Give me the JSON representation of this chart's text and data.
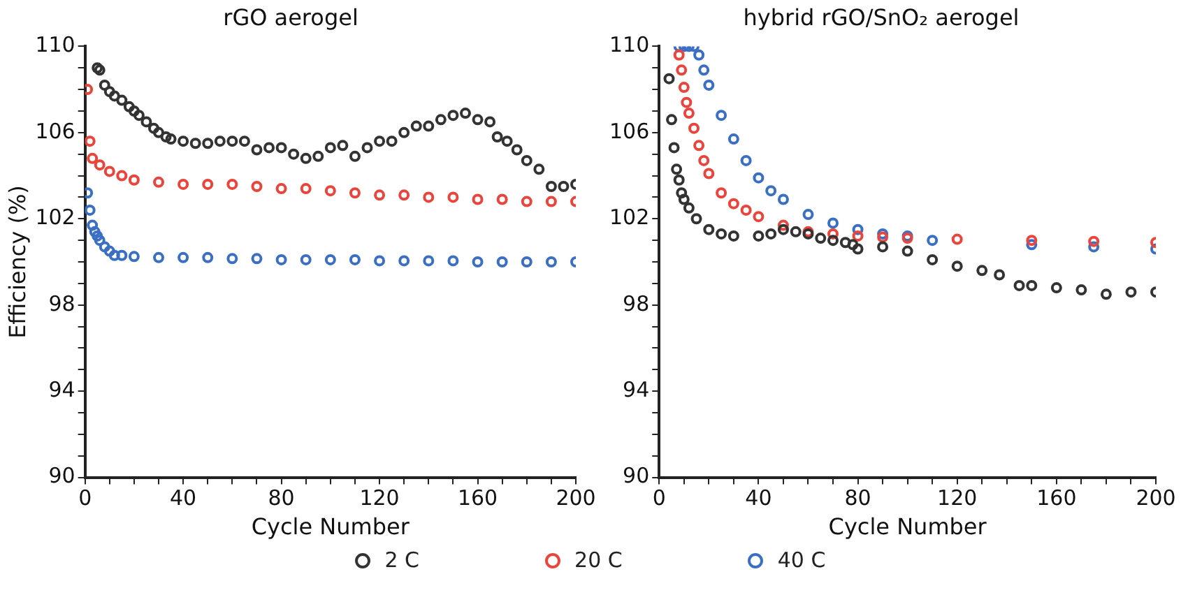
{
  "chart_data": [
    {
      "type": "scatter",
      "title": "rGO aerogel",
      "xlabel": "Cycle Number",
      "ylabel": "Efficiency (%)",
      "xlim": [
        0,
        200
      ],
      "ylim": [
        90,
        110
      ],
      "xticks": [
        0,
        {
          "value": 10,
          "label": null
        },
        40,
        {
          "value": 20,
          "label": null
        },
        {
          "value": 30,
          "label": null
        },
        {
          "value": 50,
          "label": null
        },
        {
          "value": 60,
          "label": null
        },
        {
          "value": 70,
          "label": null
        },
        80,
        {
          "value": 90,
          "label": null
        },
        {
          "value": 100,
          "label": null
        },
        {
          "value": 110,
          "label": null
        },
        120,
        {
          "value": 130,
          "label": null
        },
        {
          "value": 140,
          "label": null
        },
        {
          "value": 150,
          "label": null
        },
        160,
        {
          "value": 170,
          "label": null
        },
        {
          "value": 180,
          "label": null
        },
        {
          "value": 190,
          "label": null
        },
        200
      ],
      "yticks": [
        90,
        {
          "value": 91,
          "label": null
        },
        {
          "value": 92,
          "label": null
        },
        {
          "value": 93,
          "label": null
        },
        94,
        {
          "value": 95,
          "label": null
        },
        {
          "value": 96,
          "label": null
        },
        {
          "value": 97,
          "label": null
        },
        98,
        {
          "value": 99,
          "label": null
        },
        {
          "value": 100,
          "label": null
        },
        {
          "value": 101,
          "label": null
        },
        102,
        {
          "value": 103,
          "label": null
        },
        {
          "value": 104,
          "label": null
        },
        {
          "value": 105,
          "label": null
        },
        106,
        {
          "value": 107,
          "label": null
        },
        {
          "value": 108,
          "label": null
        },
        {
          "value": 109,
          "label": null
        },
        110
      ],
      "grid": false,
      "legend": "bottom",
      "marker": "circle",
      "series": [
        {
          "name": "2 C",
          "color": "#333333",
          "x": [
            5,
            6,
            8,
            10,
            12,
            15,
            18,
            20,
            22,
            25,
            28,
            30,
            33,
            35,
            40,
            45,
            50,
            55,
            60,
            65,
            70,
            75,
            80,
            85,
            90,
            95,
            100,
            105,
            110,
            115,
            120,
            125,
            130,
            135,
            140,
            145,
            150,
            155,
            160,
            165,
            168,
            172,
            176,
            180,
            185,
            190,
            195,
            200
          ],
          "values": [
            109.0,
            108.9,
            108.2,
            107.9,
            107.7,
            107.5,
            107.2,
            107.0,
            106.8,
            106.5,
            106.2,
            106.0,
            105.8,
            105.7,
            105.6,
            105.5,
            105.5,
            105.6,
            105.6,
            105.6,
            105.2,
            105.3,
            105.3,
            105.0,
            104.8,
            104.9,
            105.3,
            105.4,
            104.9,
            105.3,
            105.6,
            105.6,
            106.0,
            106.3,
            106.3,
            106.6,
            106.8,
            106.9,
            106.6,
            106.5,
            105.8,
            105.6,
            105.2,
            104.7,
            104.3,
            103.5,
            103.5,
            103.6
          ]
        },
        {
          "name": "20 C",
          "color": "#e8453c",
          "x": [
            1,
            2,
            3,
            6,
            10,
            15,
            20,
            30,
            40,
            50,
            60,
            70,
            80,
            90,
            100,
            110,
            120,
            130,
            140,
            150,
            160,
            170,
            180,
            190,
            200
          ],
          "values": [
            108.0,
            105.6,
            104.8,
            104.5,
            104.2,
            104.0,
            103.8,
            103.7,
            103.6,
            103.6,
            103.6,
            103.5,
            103.4,
            103.4,
            103.3,
            103.2,
            103.1,
            103.1,
            103.0,
            103.0,
            102.9,
            102.9,
            102.8,
            102.8,
            102.8
          ]
        },
        {
          "name": "40 C",
          "color": "#3a6fc4",
          "x": [
            1,
            2,
            3,
            4,
            5,
            6,
            8,
            10,
            12,
            15,
            20,
            30,
            40,
            50,
            60,
            70,
            80,
            90,
            100,
            110,
            120,
            130,
            140,
            150,
            160,
            170,
            180,
            190,
            200
          ],
          "values": [
            103.2,
            102.4,
            101.7,
            101.4,
            101.2,
            101.0,
            100.7,
            100.5,
            100.3,
            100.3,
            100.25,
            100.2,
            100.2,
            100.2,
            100.15,
            100.15,
            100.1,
            100.1,
            100.1,
            100.1,
            100.05,
            100.05,
            100.05,
            100.05,
            100.0,
            100.0,
            100.0,
            100.0,
            100.0
          ]
        }
      ]
    },
    {
      "type": "scatter",
      "title": "hybrid rGO/SnO₂ aerogel",
      "xlabel": "Cycle Number",
      "xlim": [
        0,
        200
      ],
      "ylim": [
        90,
        110
      ],
      "xticks": [
        0,
        {
          "value": 10,
          "label": null
        },
        40,
        {
          "value": 20,
          "label": null
        },
        {
          "value": 30,
          "label": null
        },
        {
          "value": 50,
          "label": null
        },
        {
          "value": 60,
          "label": null
        },
        {
          "value": 70,
          "label": null
        },
        80,
        {
          "value": 90,
          "label": null
        },
        {
          "value": 100,
          "label": null
        },
        {
          "value": 110,
          "label": null
        },
        120,
        {
          "value": 130,
          "label": null
        },
        {
          "value": 140,
          "label": null
        },
        {
          "value": 150,
          "label": null
        },
        160,
        {
          "value": 170,
          "label": null
        },
        {
          "value": 180,
          "label": null
        },
        {
          "value": 190,
          "label": null
        },
        200
      ],
      "yticks": [
        90,
        {
          "value": 91,
          "label": null
        },
        {
          "value": 92,
          "label": null
        },
        {
          "value": 93,
          "label": null
        },
        94,
        {
          "value": 95,
          "label": null
        },
        {
          "value": 96,
          "label": null
        },
        {
          "value": 97,
          "label": null
        },
        98,
        {
          "value": 99,
          "label": null
        },
        {
          "value": 100,
          "label": null
        },
        {
          "value": 101,
          "label": null
        },
        102,
        {
          "value": 103,
          "label": null
        },
        {
          "value": 104,
          "label": null
        },
        {
          "value": 105,
          "label": null
        },
        106,
        {
          "value": 107,
          "label": null
        },
        {
          "value": 108,
          "label": null
        },
        {
          "value": 109,
          "label": null
        },
        110
      ],
      "grid": false,
      "marker": "circle",
      "series": [
        {
          "color": "#333333",
          "x": [
            4,
            5,
            6,
            7,
            8,
            9,
            10,
            12,
            15,
            20,
            25,
            30,
            40,
            45,
            50,
            55,
            60,
            65,
            70,
            75,
            78,
            80,
            90,
            100,
            110,
            120,
            130,
            137,
            145,
            150,
            160,
            170,
            180,
            190,
            200
          ],
          "values": [
            108.5,
            106.6,
            105.3,
            104.3,
            103.8,
            103.2,
            102.9,
            102.5,
            102.0,
            101.5,
            101.3,
            101.2,
            101.2,
            101.3,
            101.5,
            101.4,
            101.3,
            101.1,
            101.0,
            100.9,
            100.8,
            100.6,
            100.7,
            100.5,
            100.1,
            99.8,
            99.6,
            99.4,
            98.9,
            98.9,
            98.8,
            98.7,
            98.5,
            98.6,
            98.6
          ]
        },
        {
          "color": "#e8453c",
          "x": [
            8,
            9,
            10,
            11,
            12,
            14,
            16,
            18,
            20,
            25,
            30,
            35,
            40,
            50,
            60,
            70,
            80,
            90,
            100,
            120,
            150,
            175,
            200
          ],
          "values": [
            109.6,
            108.9,
            108.1,
            107.4,
            106.9,
            106.2,
            105.4,
            104.7,
            104.1,
            103.2,
            102.7,
            102.4,
            102.1,
            101.7,
            101.4,
            101.3,
            101.2,
            101.15,
            101.1,
            101.05,
            101.0,
            100.95,
            100.9
          ]
        },
        {
          "color": "#3a6fc4",
          "x": [
            8,
            10,
            12,
            14,
            16,
            18,
            20,
            25,
            30,
            35,
            40,
            45,
            50,
            60,
            70,
            80,
            90,
            100,
            110,
            150,
            175,
            200
          ],
          "values": [
            110.0,
            110.0,
            110.0,
            110.0,
            109.6,
            108.9,
            108.2,
            106.8,
            105.7,
            104.7,
            103.9,
            103.3,
            102.9,
            102.2,
            101.8,
            101.5,
            101.3,
            101.2,
            101.0,
            100.8,
            100.7,
            100.6
          ]
        }
      ]
    }
  ]
}
